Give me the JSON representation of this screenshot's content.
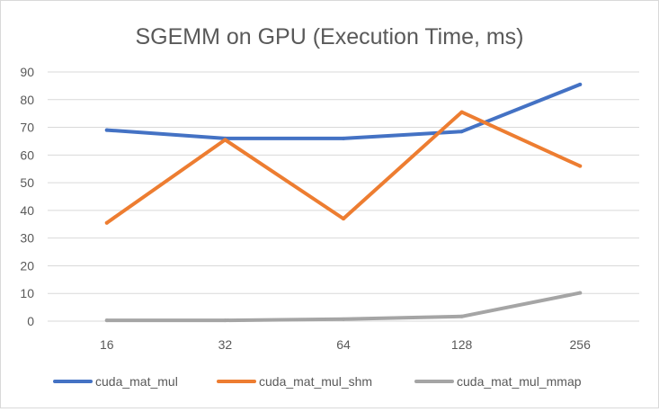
{
  "chart_data": {
    "type": "line",
    "title": "SGEMM on GPU (Execution Time, ms)",
    "xlabel": "",
    "ylabel": "",
    "categories": [
      "16",
      "32",
      "64",
      "128",
      "256"
    ],
    "ylim": [
      0,
      90
    ],
    "yticks": [
      0,
      10,
      20,
      30,
      40,
      50,
      60,
      70,
      80,
      90
    ],
    "grid": true,
    "legend_position": "bottom",
    "series": [
      {
        "name": "cuda_mat_mul",
        "color": "#4472c4",
        "values": [
          69,
          66,
          66,
          68.5,
          85.5
        ]
      },
      {
        "name": "cuda_mat_mul_shm",
        "color": "#ed7d31",
        "values": [
          35.5,
          65.5,
          37,
          75.5,
          56
        ]
      },
      {
        "name": "cuda_mat_mul_mmap",
        "color": "#a5a5a5",
        "values": [
          0.3,
          0.3,
          0.7,
          1.7,
          10.2
        ]
      }
    ]
  }
}
